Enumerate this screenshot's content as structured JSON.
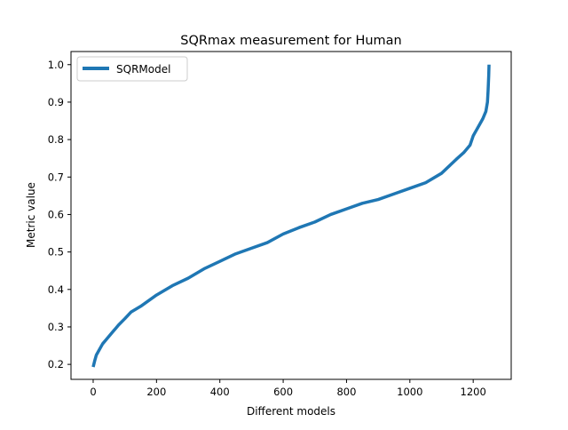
{
  "chart_data": {
    "type": "line",
    "title": "SQRmax measurement for Human",
    "xlabel": "Different models",
    "ylabel": "Metric value",
    "xlim": [
      -70,
      1320
    ],
    "ylim": [
      0.16,
      1.035
    ],
    "xticks": [
      0,
      200,
      400,
      600,
      800,
      1000,
      1200
    ],
    "yticks": [
      0.2,
      0.3,
      0.4,
      0.5,
      0.6,
      0.7,
      0.8,
      0.9,
      1.0
    ],
    "xtick_labels": [
      "0",
      "200",
      "400",
      "600",
      "800",
      "1000",
      "1200"
    ],
    "ytick_labels": [
      "0.2",
      "0.3",
      "0.4",
      "0.5",
      "0.6",
      "0.7",
      "0.8",
      "0.9",
      "1.0"
    ],
    "grid": false,
    "legend_position": "upper-left",
    "series": [
      {
        "name": "SQRModel",
        "color": "#1f77b4",
        "x": [
          0,
          5,
          10,
          20,
          30,
          40,
          50,
          60,
          70,
          80,
          100,
          120,
          150,
          200,
          250,
          300,
          350,
          400,
          450,
          500,
          550,
          600,
          650,
          700,
          750,
          800,
          850,
          900,
          950,
          1000,
          1050,
          1100,
          1150,
          1170,
          1190,
          1200,
          1210,
          1220,
          1230,
          1235,
          1240,
          1243,
          1245,
          1247,
          1249,
          1250
        ],
        "y": [
          0.193,
          0.21,
          0.225,
          0.24,
          0.255,
          0.265,
          0.275,
          0.285,
          0.295,
          0.305,
          0.322,
          0.34,
          0.355,
          0.385,
          0.41,
          0.43,
          0.455,
          0.475,
          0.495,
          0.51,
          0.525,
          0.548,
          0.565,
          0.58,
          0.6,
          0.615,
          0.63,
          0.64,
          0.655,
          0.67,
          0.685,
          0.71,
          0.75,
          0.765,
          0.785,
          0.81,
          0.825,
          0.84,
          0.855,
          0.865,
          0.875,
          0.89,
          0.9,
          0.93,
          0.97,
          1.0
        ]
      }
    ]
  }
}
